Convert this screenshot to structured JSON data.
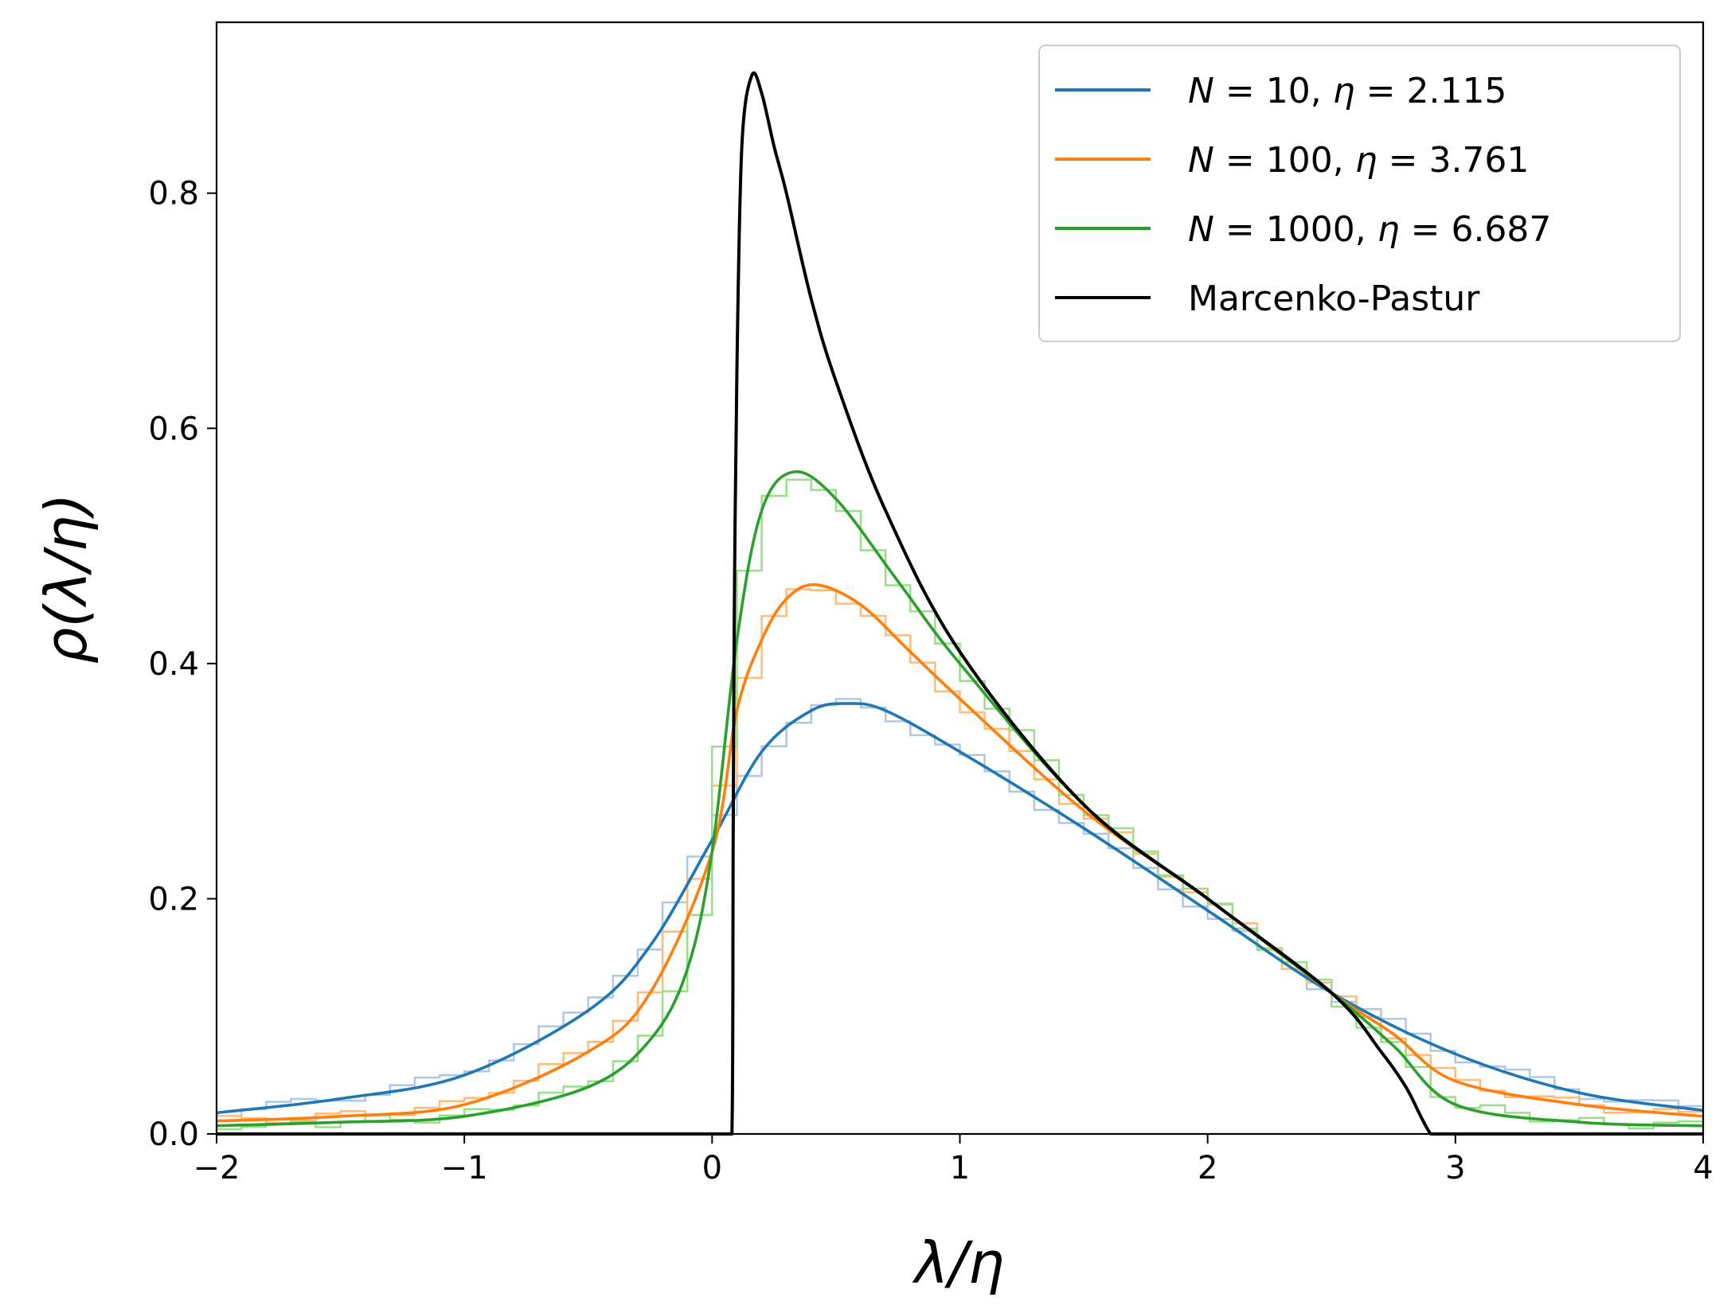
{
  "chart_data": {
    "type": "line",
    "title": "",
    "xlabel": "λ/η",
    "ylabel": "ρ(λ/η)",
    "xlim": [
      -2,
      4
    ],
    "ylim": [
      0,
      0.9453
    ],
    "xticks": [
      -2,
      -1,
      0,
      1,
      2,
      3,
      4
    ],
    "xtick_labels": [
      "−2",
      "−1",
      "0",
      "1",
      "2",
      "3",
      "4"
    ],
    "yticks": [
      0.0,
      0.2,
      0.4,
      0.6,
      0.8
    ],
    "ytick_labels": [
      "0.0",
      "0.2",
      "0.4",
      "0.6",
      "0.8"
    ],
    "grid": false,
    "legend_position": "top-right",
    "series": [
      {
        "name": "N = 10, η =  2.115",
        "label_parts": {
          "n": "N",
          "n_value": " = 10, ",
          "eta": "η",
          "eta_value": " =  2.115"
        },
        "color": "#1f77b4",
        "hist_color": "#aec7e8",
        "x": [
          -2.0,
          -1.5,
          -1.0,
          -0.5,
          -0.25,
          0.0,
          0.2,
          0.4,
          0.55,
          0.7,
          1.0,
          1.5,
          2.0,
          2.5,
          3.0,
          3.5,
          4.0
        ],
        "y": [
          0.018,
          0.03,
          0.05,
          0.105,
          0.16,
          0.25,
          0.325,
          0.36,
          0.366,
          0.36,
          0.325,
          0.26,
          0.19,
          0.12,
          0.068,
          0.035,
          0.02
        ]
      },
      {
        "name": "N = 100, η =  3.761",
        "label_parts": {
          "n": "N",
          "n_value": " = 100, ",
          "eta": "η",
          "eta_value": " =  3.761"
        },
        "color": "#ff7f0e",
        "hist_color": "#ffbb78",
        "x": [
          -2.0,
          -1.5,
          -1.0,
          -0.5,
          -0.25,
          0.0,
          0.1,
          0.2,
          0.3,
          0.42,
          0.6,
          0.8,
          1.0,
          1.5,
          2.0,
          2.5,
          2.75,
          3.0,
          3.5,
          4.0
        ],
        "y": [
          0.011,
          0.015,
          0.025,
          0.07,
          0.12,
          0.24,
          0.36,
          0.42,
          0.455,
          0.467,
          0.45,
          0.41,
          0.37,
          0.275,
          0.2,
          0.12,
          0.085,
          0.045,
          0.025,
          0.015
        ]
      },
      {
        "name": "N = 1000, η =  6.687",
        "label_parts": {
          "n": "N",
          "n_value": " = 1000, ",
          "eta": "η",
          "eta_value": " =  6.687"
        },
        "color": "#2ca02c",
        "hist_color": "#98df8a",
        "x": [
          -2.0,
          -1.5,
          -1.0,
          -0.5,
          -0.25,
          -0.1,
          0.0,
          0.1,
          0.2,
          0.33,
          0.5,
          0.75,
          1.0,
          1.5,
          2.0,
          2.5,
          2.75,
          3.0,
          3.5,
          4.0
        ],
        "y": [
          0.007,
          0.01,
          0.015,
          0.04,
          0.08,
          0.14,
          0.24,
          0.42,
          0.53,
          0.563,
          0.54,
          0.47,
          0.4,
          0.28,
          0.2,
          0.12,
          0.075,
          0.025,
          0.01,
          0.007
        ]
      },
      {
        "name": "Marcenko-Pastur",
        "color": "#000000",
        "x": [
          -2.0,
          0.08,
          0.085,
          0.09,
          0.1,
          0.12,
          0.16,
          0.2,
          0.25,
          0.3,
          0.4,
          0.5,
          0.7,
          1.0,
          1.5,
          2.0,
          2.5,
          2.7,
          2.8,
          2.86,
          2.9,
          2.92,
          4.0
        ],
        "y": [
          0.0,
          0.0,
          0.25,
          0.45,
          0.65,
          0.84,
          0.9,
          0.885,
          0.84,
          0.8,
          0.71,
          0.64,
          0.53,
          0.41,
          0.28,
          0.2,
          0.12,
          0.07,
          0.04,
          0.015,
          0.0,
          0.0,
          0.0
        ]
      }
    ]
  }
}
